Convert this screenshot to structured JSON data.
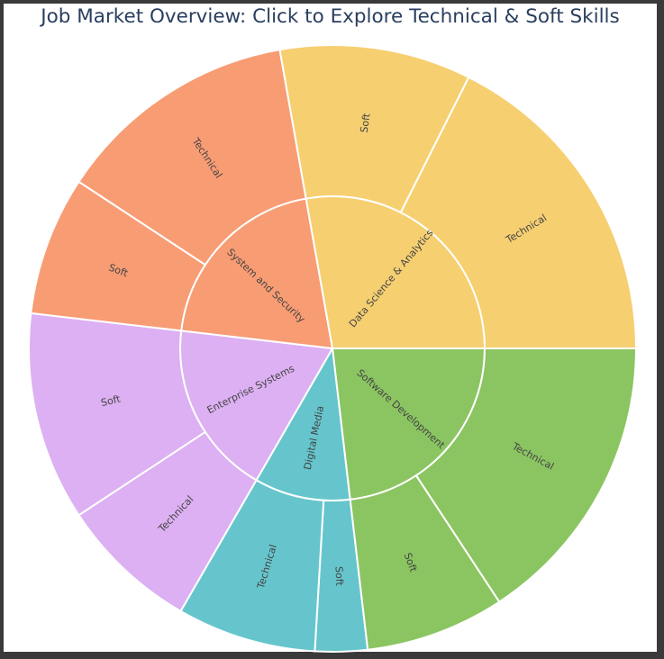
{
  "chart_data": {
    "type": "sunburst",
    "title": "Job Market Overview: Click to Explore Technical & Soft Skills",
    "categories": [
      {
        "name": "Software Development",
        "color": "#8bc562",
        "children": [
          {
            "name": "Technical",
            "value": 17
          },
          {
            "name": "Soft",
            "value": 8
          }
        ]
      },
      {
        "name": "Digital Media",
        "color": "#66c5cc",
        "children": [
          {
            "name": "Soft",
            "value": 3
          },
          {
            "name": "Technical",
            "value": 8
          }
        ]
      },
      {
        "name": "Enterprise Systems",
        "color": "#dcb0f2",
        "children": [
          {
            "name": "Technical",
            "value": 8
          },
          {
            "name": "Soft",
            "value": 12
          }
        ]
      },
      {
        "name": "System and Security",
        "color": "#f89c74",
        "children": [
          {
            "name": "Soft",
            "value": 8
          },
          {
            "name": "Technical",
            "value": 14
          }
        ]
      },
      {
        "name": "Data Science & Analytics",
        "color": "#f6cf71",
        "children": [
          {
            "name": "Soft",
            "value": 11
          },
          {
            "name": "Technical",
            "value": 19
          }
        ]
      }
    ]
  }
}
